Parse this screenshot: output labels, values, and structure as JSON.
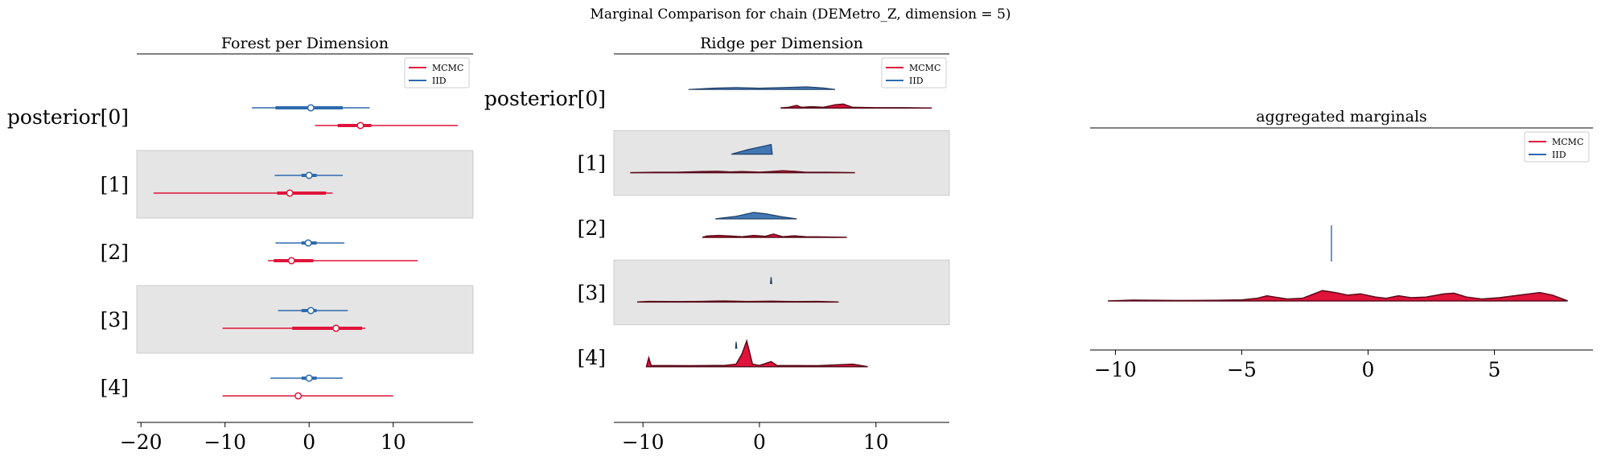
{
  "suptitle": "Marginal Comparison for chain (DEMetro_Z, dimension = 5)",
  "colors": {
    "mcmc": "#e0133a",
    "iid": "#2e6aad",
    "band": "#e5e5e5",
    "axis": "#000000"
  },
  "legend": [
    "MCMC",
    "IID"
  ],
  "chart_data": [
    {
      "type": "forest",
      "title": "Forest per Dimension",
      "ylabels": [
        "posterior[0]",
        "[1]",
        "[2]",
        "[3]",
        "[4]"
      ],
      "xticks": [
        -20,
        -10,
        0,
        10
      ],
      "xlim": [
        -20.5,
        19.5
      ],
      "shaded_rows": [
        1,
        3
      ],
      "legend_placement": "top-right",
      "series": [
        {
          "name": "MCMC",
          "rows": [
            {
              "min": 0.7,
              "q25": 3.4,
              "median": 6.1,
              "q75": 7.4,
              "max": 17.7
            },
            {
              "min": -18.5,
              "q25": -3.8,
              "median": -2.3,
              "q75": 2.0,
              "max": 2.8
            },
            {
              "min": -4.9,
              "q25": -4.2,
              "median": -2.1,
              "q75": 0.5,
              "max": 12.9
            },
            {
              "min": -10.3,
              "q25": -2.0,
              "median": 3.2,
              "q75": 6.3,
              "max": 6.7
            },
            {
              "min": -10.3,
              "q25": null,
              "median": -1.3,
              "q75": null,
              "max": 10.0
            }
          ]
        },
        {
          "name": "IID",
          "rows": [
            {
              "min": -6.8,
              "q25": -4.0,
              "median": 0.2,
              "q75": 4.0,
              "max": 7.2
            },
            {
              "min": -4.1,
              "q25": -0.9,
              "median": 0.0,
              "q75": 0.9,
              "max": 4.0
            },
            {
              "min": -4.0,
              "q25": -0.9,
              "median": -0.1,
              "q75": 0.9,
              "max": 4.2
            },
            {
              "min": -3.7,
              "q25": -0.9,
              "median": 0.2,
              "q75": 0.9,
              "max": 4.6
            },
            {
              "min": -4.6,
              "q25": -0.9,
              "median": 0.0,
              "q75": 0.9,
              "max": 4.0
            }
          ]
        }
      ]
    },
    {
      "type": "ridge",
      "title": "Ridge per Dimension",
      "ylabels": [
        "posterior[0]",
        "[1]",
        "[2]",
        "[3]",
        "[4]"
      ],
      "xticks": [
        -10,
        0,
        10
      ],
      "xlim": [
        -12.5,
        16.3
      ],
      "shaded_rows": [
        1,
        3
      ],
      "legend_placement": "top-right",
      "series": [
        {
          "name": "MCMC",
          "rows": [
            {
              "points": [
                [
                  1.8,
                  0
                ],
                [
                  2.5,
                  0.05
                ],
                [
                  3.2,
                  0.2
                ],
                [
                  3.6,
                  0.05
                ],
                [
                  4.5,
                  0.1
                ],
                [
                  5.5,
                  0.05
                ],
                [
                  6.5,
                  0.25
                ],
                [
                  7.2,
                  0.3
                ],
                [
                  8,
                  0.05
                ],
                [
                  10,
                  0.02
                ],
                [
                  12.4,
                  0.02
                ],
                [
                  14.8,
                  0
                ]
              ]
            },
            {
              "points": [
                [
                  -11.1,
                  0
                ],
                [
                  -9,
                  0.03
                ],
                [
                  -7,
                  0.03
                ],
                [
                  -5,
                  0.08
                ],
                [
                  -3.5,
                  0.1
                ],
                [
                  -2.5,
                  0.05
                ],
                [
                  -1.5,
                  0.08
                ],
                [
                  0,
                  0.04
                ],
                [
                  1,
                  0.08
                ],
                [
                  2,
                  0.15
                ],
                [
                  3,
                  0.1
                ],
                [
                  4,
                  0.03
                ],
                [
                  6,
                  0.03
                ],
                [
                  8.2,
                  0
                ]
              ]
            },
            {
              "points": [
                [
                  -4.9,
                  0
                ],
                [
                  -4.5,
                  0.1
                ],
                [
                  -3.5,
                  0.15
                ],
                [
                  -2.5,
                  0.1
                ],
                [
                  -1.5,
                  0.05
                ],
                [
                  -0.5,
                  0.15
                ],
                [
                  0.5,
                  0.08
                ],
                [
                  1.2,
                  0.25
                ],
                [
                  2,
                  0.05
                ],
                [
                  3,
                  0.12
                ],
                [
                  4,
                  0.05
                ],
                [
                  5.5,
                  0.03
                ],
                [
                  7.5,
                  0
                ]
              ]
            },
            {
              "points": [
                [
                  -10.5,
                  0
                ],
                [
                  -9.5,
                  0.05
                ],
                [
                  -7,
                  0.03
                ],
                [
                  -5,
                  0.05
                ],
                [
                  -3,
                  0.08
                ],
                [
                  -1,
                  0.04
                ],
                [
                  1,
                  0.06
                ],
                [
                  3,
                  0.03
                ],
                [
                  5,
                  0.05
                ],
                [
                  6.8,
                  0
                ]
              ]
            },
            {
              "points": [
                [
                  -9.7,
                  0
                ],
                [
                  -9.5,
                  0.7
                ],
                [
                  -9.3,
                  0.1
                ],
                [
                  -6,
                  0.08
                ],
                [
                  -3,
                  0.1
                ],
                [
                  -2,
                  0.2
                ],
                [
                  -1.5,
                  1.0
                ],
                [
                  -1.1,
                  2.0
                ],
                [
                  -0.9,
                  1.3
                ],
                [
                  -0.6,
                  0.2
                ],
                [
                  0,
                  0.1
                ],
                [
                  1,
                  0.4
                ],
                [
                  1.5,
                  0.1
                ],
                [
                  5,
                  0.08
                ],
                [
                  8,
                  0.2
                ],
                [
                  9.3,
                  0
                ]
              ]
            }
          ]
        },
        {
          "name": "IID",
          "rows": [
            {
              "points": [
                [
                  -6.1,
                  0
                ],
                [
                  -4,
                  0.1
                ],
                [
                  -2,
                  0.15
                ],
                [
                  0,
                  0.1
                ],
                [
                  2,
                  0.15
                ],
                [
                  4,
                  0.2
                ],
                [
                  5.5,
                  0.12
                ],
                [
                  6.5,
                  0
                ]
              ]
            },
            {
              "points": [
                [
                  -2.4,
                  0
                ],
                [
                  -1,
                  0.35
                ],
                [
                  0,
                  0.55
                ],
                [
                  1,
                  0.75
                ],
                [
                  1.1,
                  0
                ]
              ]
            },
            {
              "points": [
                [
                  -3.8,
                  0
                ],
                [
                  -2,
                  0.2
                ],
                [
                  -0.5,
                  0.5
                ],
                [
                  0.5,
                  0.4
                ],
                [
                  2,
                  0.15
                ],
                [
                  3.2,
                  0
                ]
              ]
            },
            {
              "points": [
                [
                  0.95,
                  0
                ],
                [
                  1.0,
                  0.5
                ],
                [
                  1.05,
                  0
                ]
              ]
            },
            {
              "points": [
                [
                  -2.05,
                  0
                ],
                [
                  -2.0,
                  0.5
                ],
                [
                  -1.95,
                  0
                ]
              ]
            }
          ]
        }
      ]
    },
    {
      "type": "ridge",
      "title": "aggregated marginals",
      "xticks": [
        -10,
        -5,
        0,
        5
      ],
      "xlim": [
        -11.0,
        8.9
      ],
      "legend_placement": "top-right",
      "series": [
        {
          "name": "MCMC",
          "points": [
            [
              -10.3,
              0
            ],
            [
              -9.3,
              0.06
            ],
            [
              -7.5,
              0.03
            ],
            [
              -6,
              0.05
            ],
            [
              -5,
              0.08
            ],
            [
              -4.4,
              0.2
            ],
            [
              -4,
              0.4
            ],
            [
              -3.7,
              0.3
            ],
            [
              -3.2,
              0.15
            ],
            [
              -2.6,
              0.2
            ],
            [
              -2.2,
              0.5
            ],
            [
              -1.8,
              0.8
            ],
            [
              -1.3,
              0.65
            ],
            [
              -0.8,
              0.45
            ],
            [
              -0.3,
              0.55
            ],
            [
              0.3,
              0.3
            ],
            [
              0.7,
              0.2
            ],
            [
              1.2,
              0.4
            ],
            [
              1.7,
              0.25
            ],
            [
              2.3,
              0.3
            ],
            [
              3,
              0.55
            ],
            [
              3.4,
              0.6
            ],
            [
              3.9,
              0.3
            ],
            [
              4.5,
              0.15
            ],
            [
              5.2,
              0.25
            ],
            [
              6,
              0.45
            ],
            [
              6.8,
              0.65
            ],
            [
              7.3,
              0.45
            ],
            [
              7.9,
              0
            ]
          ]
        },
        {
          "name": "IID",
          "spike_x": -1.45
        }
      ]
    }
  ]
}
